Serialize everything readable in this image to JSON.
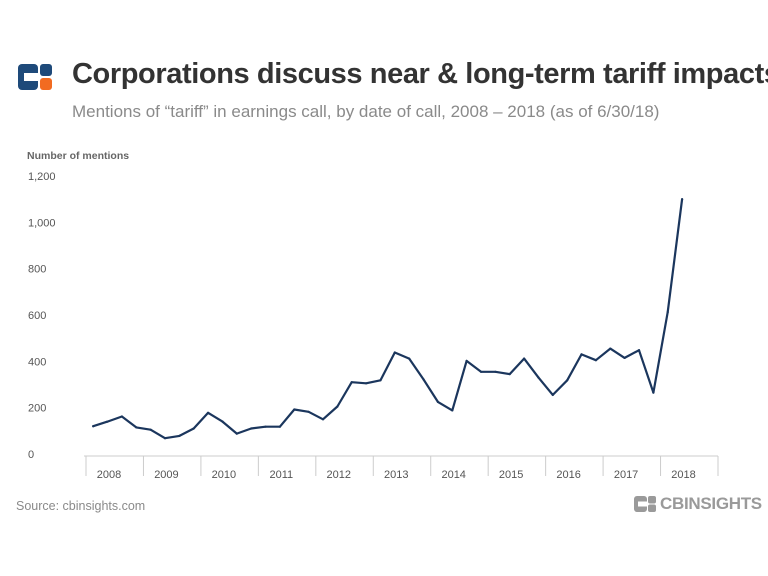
{
  "header": {
    "title": "Corporations discuss near & long-term tariff impacts",
    "subtitle": "Mentions of “tariff” in earnings call, by date of call, 2008 – 2018 (as of 6/30/18)",
    "logo_icon": "cb-insights-logo-icon"
  },
  "footer": {
    "source": "Source: cbinsights.com",
    "brand": "CBINSIGHTS",
    "brand_icon": "cb-insights-logo-icon"
  },
  "colors": {
    "line": "#1b365d",
    "logo_blue": "#1e4a7a",
    "logo_orange": "#f26b21",
    "brand_gray": "#9a9a9a"
  },
  "chart_data": {
    "type": "line",
    "title": "Corporations discuss near & long-term tariff impacts",
    "subtitle": "Mentions of “tariff” in earnings call, by date of call, 2008 – 2018 (as of 6/30/18)",
    "xlabel": "",
    "ylabel": "Number of mentions",
    "ylim": [
      0,
      1200
    ],
    "yticks": [
      0,
      200,
      400,
      600,
      800,
      1000,
      1200
    ],
    "ytick_labels": [
      "0",
      "200",
      "400",
      "600",
      "800",
      "1,000",
      "1,200"
    ],
    "xtick_labels": [
      "2008",
      "2009",
      "2010",
      "2011",
      "2012",
      "2013",
      "2014",
      "2015",
      "2016",
      "2017",
      "2018"
    ],
    "x": [
      "2008 Q1",
      "2008 Q2",
      "2008 Q3",
      "2008 Q4",
      "2009 Q1",
      "2009 Q2",
      "2009 Q3",
      "2009 Q4",
      "2010 Q1",
      "2010 Q2",
      "2010 Q3",
      "2010 Q4",
      "2011 Q1",
      "2011 Q2",
      "2011 Q3",
      "2011 Q4",
      "2012 Q1",
      "2012 Q2",
      "2012 Q3",
      "2012 Q4",
      "2013 Q1",
      "2013 Q2",
      "2013 Q3",
      "2013 Q4",
      "2014 Q1",
      "2014 Q2",
      "2014 Q3",
      "2014 Q4",
      "2015 Q1",
      "2015 Q2",
      "2015 Q3",
      "2015 Q4",
      "2016 Q1",
      "2016 Q2",
      "2016 Q3",
      "2016 Q4",
      "2017 Q1",
      "2017 Q2",
      "2017 Q3",
      "2017 Q4",
      "2018 Q1",
      "2018 Q2"
    ],
    "series": [
      {
        "values": [
          120,
          140,
          162,
          115,
          105,
          68,
          78,
          110,
          178,
          140,
          88,
          110,
          118,
          118,
          192,
          182,
          150,
          205,
          310,
          305,
          318,
          438,
          412,
          322,
          225,
          188,
          402,
          355,
          355,
          345,
          412,
          330,
          255,
          318,
          430,
          405,
          455,
          415,
          448,
          265,
          612,
          1100
        ]
      }
    ],
    "grid": false,
    "legend": "none"
  }
}
